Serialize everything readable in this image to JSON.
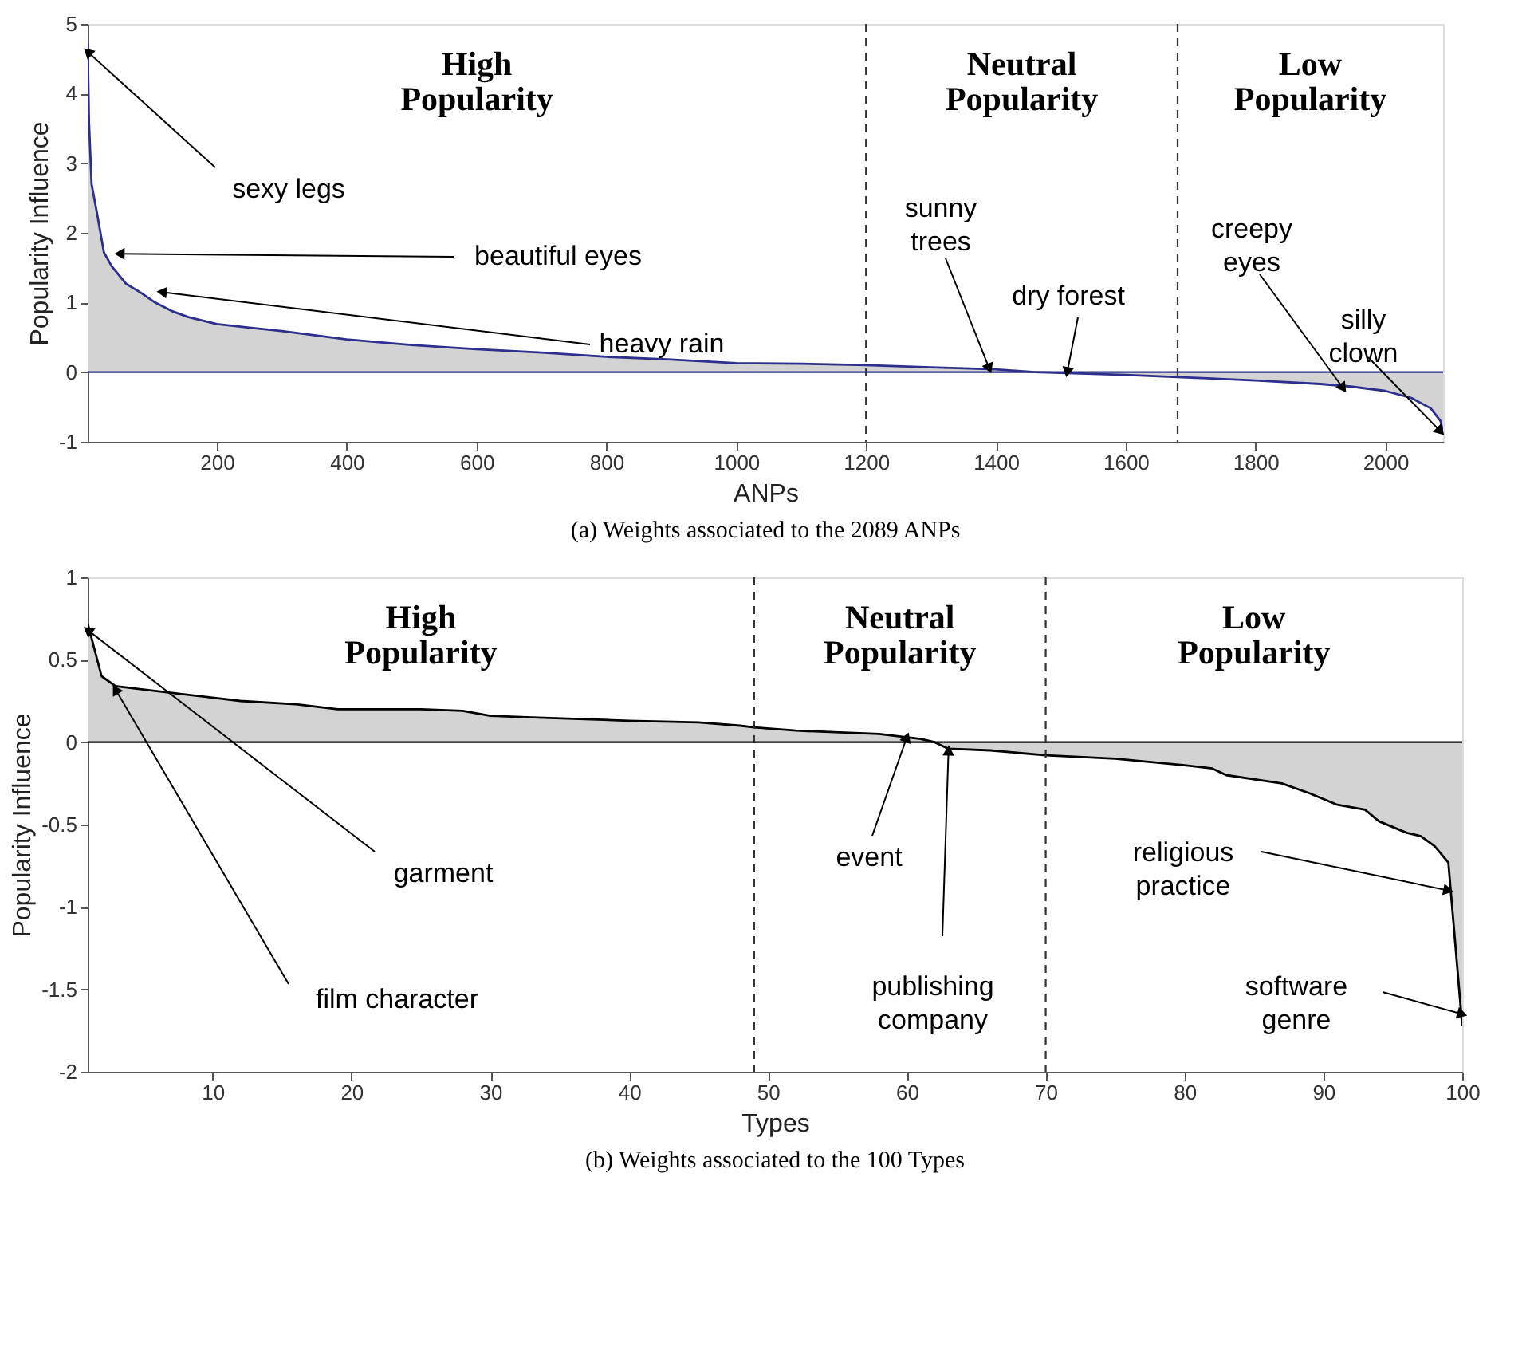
{
  "chart_data": [
    {
      "type": "area",
      "title": "(a) Weights associated to the 2089 ANPs",
      "xlabel": "ANPs",
      "ylabel": "Popularity Influence",
      "x": [
        1,
        3,
        7,
        15,
        26,
        38,
        60,
        83,
        103,
        130,
        156,
        200,
        250,
        300,
        400,
        500,
        600,
        700,
        800,
        900,
        1000,
        1100,
        1200,
        1300,
        1400,
        1460,
        1500,
        1600,
        1680,
        1800,
        1900,
        1950,
        2000,
        2040,
        2070,
        2085,
        2089
      ],
      "series": [
        {
          "type": "area",
          "color": "#2e2e8c",
          "values": [
            4.72,
            3.6,
            2.7,
            2.3,
            1.72,
            1.52,
            1.27,
            1.14,
            1.01,
            0.88,
            0.79,
            0.69,
            0.64,
            0.59,
            0.47,
            0.39,
            0.33,
            0.28,
            0.22,
            0.18,
            0.13,
            0.12,
            0.1,
            0.07,
            0.04,
            0.0,
            -0.01,
            -0.04,
            -0.07,
            -0.12,
            -0.17,
            -0.21,
            -0.27,
            -0.37,
            -0.52,
            -0.7,
            -0.87
          ]
        }
      ],
      "xlim": [
        1,
        2089
      ],
      "ylim": [
        -1,
        5
      ],
      "xticks": [
        200,
        400,
        600,
        800,
        1000,
        1200,
        1400,
        1600,
        1800,
        2000
      ],
      "yticks": [
        -1,
        0,
        1,
        2,
        3,
        4,
        5
      ],
      "ref_lines": [
        {
          "axis": "x",
          "value": 1200,
          "color": "#333333",
          "line_style": "dashed"
        },
        {
          "axis": "x",
          "value": 1680,
          "color": "#333333",
          "line_style": "dashed"
        },
        {
          "axis": "y",
          "value": 0,
          "color": "#2e2e8c",
          "line_style": "solid"
        }
      ],
      "annotations": [
        "High\nPopularity",
        "Neutral\nPopularity",
        "Low\nPopularity",
        {
          "text": "sexy legs",
          "x": 1,
          "y": 4.6
        },
        {
          "text": "beautiful eyes",
          "x": 50,
          "y": 1.7
        },
        {
          "text": "heavy rain",
          "x": 115,
          "y": 1.15
        },
        {
          "text": "sunny trees",
          "x": 1390,
          "y": 0.05
        },
        {
          "text": "dry forest",
          "x": 1510,
          "y": 0.0
        },
        {
          "text": "creepy eyes",
          "x": 1935,
          "y": -0.23
        },
        {
          "text": "silly clown",
          "x": 2085,
          "y": -0.85
        }
      ]
    },
    {
      "type": "area",
      "title": "(b) Weights associated to the 100 Types",
      "xlabel": "Types",
      "ylabel": "Popularity Influence",
      "x": [
        1,
        2,
        3,
        5,
        10,
        12,
        16,
        19,
        25,
        28,
        30,
        33,
        40,
        45,
        48,
        49,
        52,
        58,
        61,
        62,
        63,
        66,
        70,
        75,
        80,
        82,
        83,
        87,
        89,
        91,
        93,
        94,
        96,
        97,
        98,
        99,
        100
      ],
      "series": [
        {
          "type": "area",
          "color": "#000000",
          "values": [
            0.72,
            0.4,
            0.34,
            0.32,
            0.27,
            0.25,
            0.23,
            0.2,
            0.2,
            0.19,
            0.16,
            0.15,
            0.13,
            0.12,
            0.1,
            0.09,
            0.07,
            0.05,
            0.02,
            0.0,
            -0.04,
            -0.05,
            -0.08,
            -0.1,
            -0.14,
            -0.16,
            -0.2,
            -0.25,
            -0.31,
            -0.38,
            -0.41,
            -0.48,
            -0.55,
            -0.57,
            -0.63,
            -0.73,
            -1.72
          ]
        }
      ],
      "xlim": [
        1,
        100
      ],
      "ylim": [
        -2,
        1
      ],
      "xticks": [
        10,
        20,
        30,
        40,
        50,
        60,
        70,
        80,
        90,
        100
      ],
      "yticks": [
        -2,
        -1.5,
        -1,
        -0.5,
        0,
        0.5,
        1
      ],
      "ref_lines": [
        {
          "axis": "x",
          "value": 49,
          "color": "#333333",
          "line_style": "dashed"
        },
        {
          "axis": "x",
          "value": 70,
          "color": "#333333",
          "line_style": "dashed"
        },
        {
          "axis": "y",
          "value": 0,
          "color": "#000000",
          "line_style": "solid"
        }
      ],
      "annotations": [
        "High\nPopularity",
        "Neutral\nPopularity",
        "Low\nPopularity",
        {
          "text": "garment",
          "x": 1,
          "y": 0.68
        },
        {
          "text": "film character",
          "x": 3,
          "y": 0.32
        },
        {
          "text": "event",
          "x": 60,
          "y": 0.03
        },
        {
          "text": "publishing company",
          "x": 63,
          "y": -0.05
        },
        {
          "text": "religious practice",
          "x": 99,
          "y": -0.9
        },
        {
          "text": "software genre",
          "x": 100,
          "y": -1.65
        }
      ]
    }
  ]
}
